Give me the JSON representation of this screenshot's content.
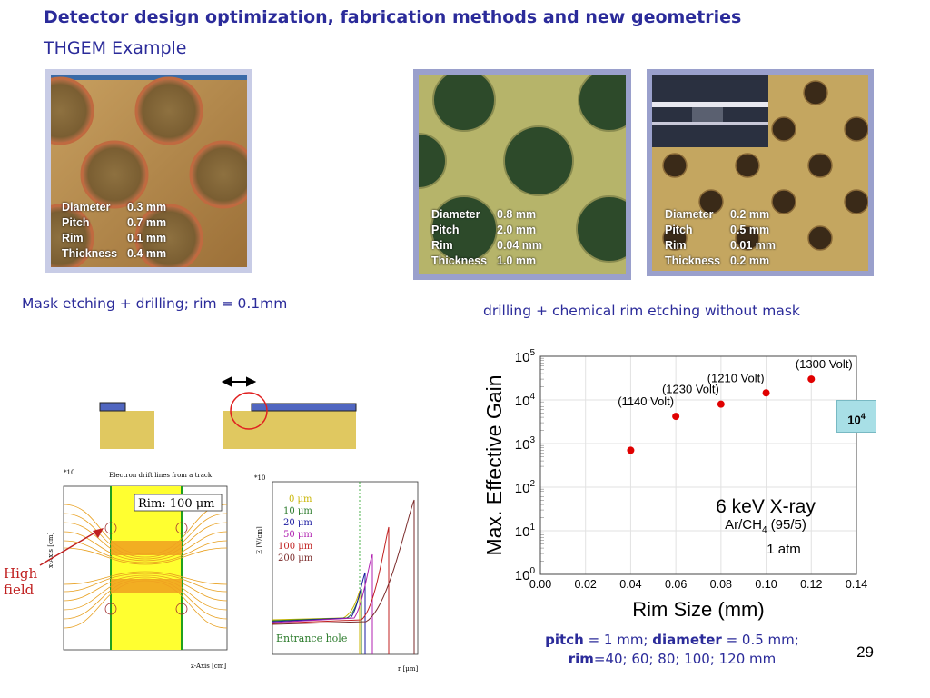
{
  "title": "Detector design optimization, fabrication methods and new geometries",
  "subtitle": "THGEM Example",
  "photos": [
    {
      "specs": [
        [
          "Diameter",
          "0.3 mm"
        ],
        [
          "Pitch",
          "0.7 mm"
        ],
        [
          "Rim",
          "0.1 mm"
        ],
        [
          "Thickness",
          "0.4 mm"
        ]
      ]
    },
    {
      "specs": [
        [
          "Diameter",
          "0.8   mm"
        ],
        [
          "Pitch",
          "2.0   mm"
        ],
        [
          "Rim",
          "0.04 mm"
        ],
        [
          "Thickness",
          "1.0   mm"
        ]
      ]
    },
    {
      "specs": [
        [
          "Diameter",
          "0.2   mm"
        ],
        [
          "Pitch",
          "0.5   mm"
        ],
        [
          "Rim",
          "0.01 mm"
        ],
        [
          "Thickness",
          "0.2   mm"
        ]
      ]
    }
  ],
  "caption_left": "Mask etching + drilling; rim = 0.1mm",
  "caption_right": "drilling + chemical rim etching without mask",
  "sim_left": {
    "title": "Electron drift lines from a track",
    "rim_label": "Rim: 100 μm",
    "xaxis": "z-Axis [cm]",
    "yaxis": "x-Axis [cm]",
    "multiplier": "*10",
    "callout": "High field"
  },
  "sim_right": {
    "yaxis": "E [V/cm]",
    "xaxis": "r [μm]",
    "multiplier": "*10",
    "legend": [
      {
        "label": "0 μm",
        "color": "#c8b400"
      },
      {
        "label": "10 μm",
        "color": "#2a7a2a"
      },
      {
        "label": "20 μm",
        "color": "#1a1aa0"
      },
      {
        "label": "50 μm",
        "color": "#b020b0"
      },
      {
        "label": "100 μm",
        "color": "#c02020"
      },
      {
        "label": "200 μm",
        "color": "#7a2a2a"
      }
    ],
    "annotation": "Entrance hole"
  },
  "chart_data": {
    "type": "scatter",
    "xlabel": "Rim Size (mm)",
    "ylabel": "Max. Effective Gain",
    "xlim": [
      0.0,
      0.14
    ],
    "ylim_log10": [
      0,
      5
    ],
    "x_ticks": [
      "0.00",
      "0.02",
      "0.04",
      "0.06",
      "0.08",
      "0.10",
      "0.12",
      "0.14"
    ],
    "y_tick_exponents": [
      "0",
      "1",
      "2",
      "3",
      "4",
      "5"
    ],
    "points": [
      {
        "x": 0.04,
        "y": 700,
        "label": ""
      },
      {
        "x": 0.06,
        "y": 4200,
        "label": "(1140 Volt)"
      },
      {
        "x": 0.08,
        "y": 8000,
        "label": "(1230 Volt)"
      },
      {
        "x": 0.1,
        "y": 14500,
        "label": "(1210 Volt)"
      },
      {
        "x": 0.12,
        "y": 30000,
        "label": "(1300 Volt)"
      }
    ],
    "annotation_1": "6 keV X-ray",
    "annotation_2_base": "Ar/CH",
    "annotation_2_sub": "4",
    "annotation_2_rest": " (95/5)",
    "annotation_3": "1 atm",
    "point_color": "#e00000"
  },
  "badge": {
    "base": "10",
    "exp": "4"
  },
  "note": {
    "pitch_k": "pitch",
    "pitch_v": " = 1 mm; ",
    "diam_k": "diameter",
    "diam_v": " = 0.5 mm;",
    "rim_k": "rim",
    "rim_v": "=40; 60; 80; 100; 120 mm"
  },
  "page_number": "29"
}
